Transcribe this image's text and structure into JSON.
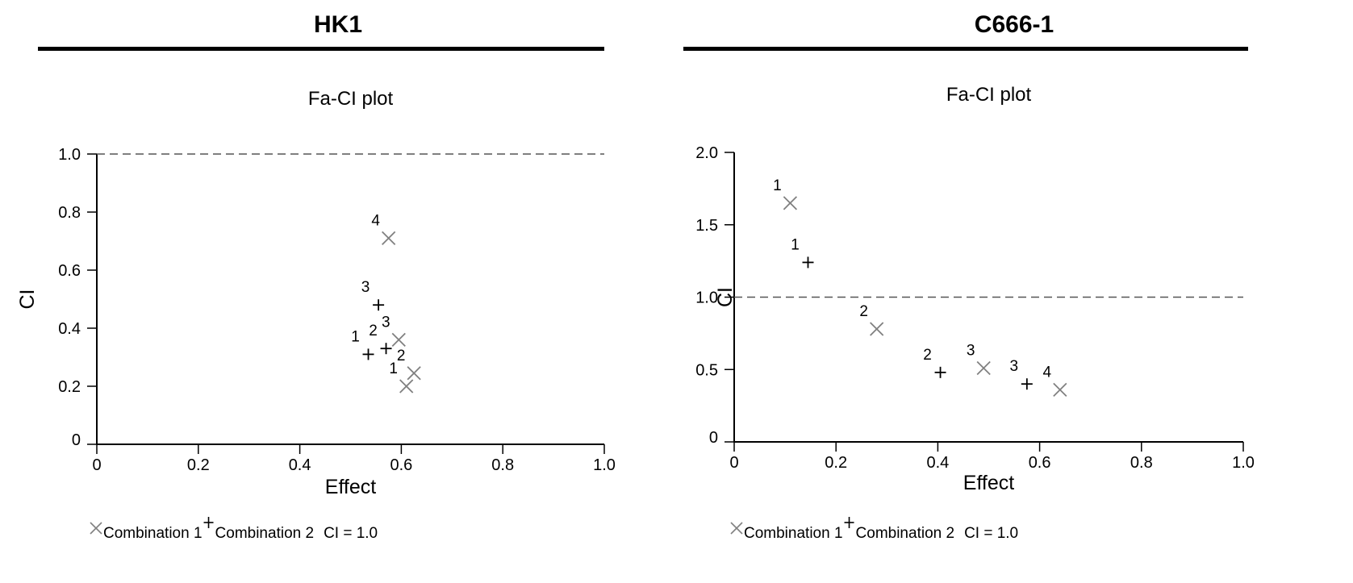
{
  "chart_data": [
    {
      "panel_title": "HK1",
      "type": "scatter",
      "title": "Fa-CI plot",
      "xlabel": "Effect",
      "ylabel": "CI",
      "xlim": [
        0,
        1.0
      ],
      "ylim": [
        0,
        1.0
      ],
      "x_ticks": [
        "0",
        "0.2",
        "0.4",
        "0.6",
        "0.8",
        "1.0"
      ],
      "y_ticks": [
        "0",
        "0.2",
        "0.4",
        "0.6",
        "0.8",
        "1.0"
      ],
      "reference_line": {
        "y": 1.0,
        "style": "dashed"
      },
      "series": [
        {
          "name": "Combination 1",
          "marker": "x",
          "color": "#808080",
          "points": [
            {
              "x": 0.61,
              "y": 0.2,
              "label": "1"
            },
            {
              "x": 0.625,
              "y": 0.245,
              "label": "2"
            },
            {
              "x": 0.595,
              "y": 0.36,
              "label": "3"
            },
            {
              "x": 0.575,
              "y": 0.71,
              "label": "4"
            }
          ]
        },
        {
          "name": "Combination 2",
          "marker": "+",
          "color": "#000000",
          "points": [
            {
              "x": 0.535,
              "y": 0.31,
              "label": "1"
            },
            {
              "x": 0.57,
              "y": 0.33,
              "label": "2"
            },
            {
              "x": 0.555,
              "y": 0.48,
              "label": "3"
            }
          ]
        }
      ],
      "legend": {
        "placement": "bottom",
        "items": [
          "Combination 1",
          "Combination 2",
          "CI = 1.0"
        ]
      }
    },
    {
      "panel_title": "C666-1",
      "type": "scatter",
      "title": "Fa-CI plot",
      "xlabel": "Effect",
      "ylabel": "CI",
      "xlim": [
        0,
        1.0
      ],
      "ylim": [
        0,
        2.0
      ],
      "x_ticks": [
        "0",
        "0.2",
        "0.4",
        "0.6",
        "0.8",
        "1.0"
      ],
      "y_ticks": [
        "0",
        "0.5",
        "1.0",
        "1.5",
        "2.0"
      ],
      "reference_line": {
        "y": 1.0,
        "style": "dashed"
      },
      "series": [
        {
          "name": "Combination 1",
          "marker": "x",
          "color": "#808080",
          "points": [
            {
              "x": 0.11,
              "y": 1.65,
              "label": "1"
            },
            {
              "x": 0.28,
              "y": 0.78,
              "label": "2"
            },
            {
              "x": 0.49,
              "y": 0.51,
              "label": "3"
            },
            {
              "x": 0.64,
              "y": 0.36,
              "label": "4"
            }
          ]
        },
        {
          "name": "Combination 2",
          "marker": "+",
          "color": "#000000",
          "points": [
            {
              "x": 0.145,
              "y": 1.24,
              "label": "1"
            },
            {
              "x": 0.405,
              "y": 0.48,
              "label": "2"
            },
            {
              "x": 0.575,
              "y": 0.4,
              "label": "3"
            }
          ]
        }
      ],
      "legend": {
        "placement": "bottom",
        "items": [
          "Combination 1",
          "Combination 2",
          "CI = 1.0"
        ]
      }
    }
  ]
}
